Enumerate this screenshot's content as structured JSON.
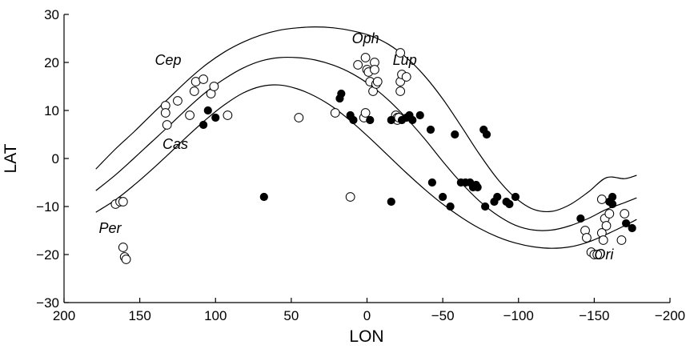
{
  "chart_data": {
    "type": "scatter",
    "xlabel": "LON",
    "ylabel": "LAT",
    "xlim": [
      200,
      -200
    ],
    "ylim": [
      -30,
      30
    ],
    "xticks": [
      200,
      150,
      100,
      50,
      0,
      -50,
      -100,
      -150,
      -200
    ],
    "yticks": [
      30,
      20,
      10,
      0,
      -10,
      -20,
      -30
    ],
    "xtick_labels": [
      "200",
      "150",
      "100",
      "50",
      "0",
      "−50",
      "−100",
      "−150",
      "−200"
    ],
    "ytick_labels": [
      "30",
      "20",
      "10",
      "0",
      "−10",
      "−20",
      "−30"
    ],
    "grid": false,
    "annotations": [
      {
        "text": "Cep",
        "x": 140,
        "y": 19.5
      },
      {
        "text": "Oph",
        "x": 10,
        "y": 24
      },
      {
        "text": "Lup",
        "x": -17,
        "y": 19.5
      },
      {
        "text": "Cas",
        "x": 135,
        "y": 2
      },
      {
        "text": "Per",
        "x": 177,
        "y": -15.5
      },
      {
        "text": "Ori",
        "x": -150,
        "y": -21
      }
    ],
    "curves": [
      {
        "name": "upper",
        "x": [
          179,
          166,
          154,
          142,
          130,
          118,
          106,
          94,
          82,
          70,
          58,
          46,
          34,
          22,
          10,
          -2,
          -14,
          -26,
          -38,
          -50,
          -62,
          -74,
          -86,
          -98,
          -110,
          -122,
          -134,
          -146,
          -158,
          -170,
          -178
        ],
        "y": [
          -2.2,
          2.0,
          5.5,
          9.2,
          12.8,
          16.4,
          19.6,
          22.2,
          24.2,
          25.7,
          26.7,
          27.2,
          27.4,
          27.2,
          26.6,
          25.6,
          23.8,
          21.0,
          17.2,
          12.4,
          6.8,
          1.0,
          -4.2,
          -8.2,
          -10.6,
          -11.0,
          -9.6,
          -7.0,
          -4.0,
          -4.2,
          -3.5
        ]
      },
      {
        "name": "middle",
        "x": [
          179,
          166,
          154,
          142,
          130,
          118,
          106,
          94,
          82,
          70,
          58,
          46,
          34,
          22,
          10,
          -2,
          -14,
          -26,
          -38,
          -50,
          -62,
          -74,
          -86,
          -98,
          -110,
          -122,
          -134,
          -146,
          -158,
          -170,
          -178
        ],
        "y": [
          -6.7,
          -3.4,
          0.0,
          3.5,
          7.0,
          10.6,
          13.9,
          16.6,
          18.8,
          20.3,
          21.0,
          21.0,
          20.5,
          19.4,
          17.7,
          15.3,
          12.2,
          8.4,
          4.1,
          -0.6,
          -5.0,
          -8.8,
          -11.8,
          -13.9,
          -14.9,
          -14.9,
          -14.0,
          -12.5,
          -10.6,
          -9.2,
          -8.2
        ]
      },
      {
        "name": "lower",
        "x": [
          179,
          166,
          154,
          142,
          130,
          118,
          106,
          94,
          82,
          70,
          58,
          46,
          34,
          22,
          10,
          -2,
          -14,
          -26,
          -38,
          -50,
          -62,
          -74,
          -86,
          -98,
          -110,
          -122,
          -134,
          -146,
          -158,
          -170,
          -178
        ],
        "y": [
          -11.2,
          -8.6,
          -5.6,
          -2.3,
          1.2,
          4.8,
          8.2,
          11.2,
          13.6,
          15.0,
          15.3,
          14.5,
          12.9,
          10.6,
          7.6,
          4.2,
          0.6,
          -3.0,
          -6.4,
          -9.5,
          -12.2,
          -14.5,
          -16.3,
          -17.6,
          -18.4,
          -18.7,
          -18.4,
          -17.4,
          -15.8,
          -14.0,
          -12.7
        ]
      }
    ],
    "series": [
      {
        "name": "open",
        "marker": "open-circle",
        "points": [
          [
            166,
            -9.5
          ],
          [
            163,
            -9.0
          ],
          [
            161,
            -9.0
          ],
          [
            161,
            -18.5
          ],
          [
            160,
            -20.5
          ],
          [
            159,
            -21.0
          ],
          [
            133,
            11.0
          ],
          [
            133,
            9.5
          ],
          [
            132,
            7.0
          ],
          [
            125,
            12.0
          ],
          [
            117,
            9.0
          ],
          [
            114,
            14.0
          ],
          [
            113,
            16.0
          ],
          [
            108,
            16.5
          ],
          [
            103,
            13.5
          ],
          [
            101,
            15.0
          ],
          [
            92,
            9.0
          ],
          [
            45,
            8.5
          ],
          [
            21,
            9.5
          ],
          [
            11,
            -8.0
          ],
          [
            6,
            19.5
          ],
          [
            2,
            8.5
          ],
          [
            1,
            9.5
          ],
          [
            1,
            21.0
          ],
          [
            0,
            18.5
          ],
          [
            -1,
            18.0
          ],
          [
            -2,
            16.0
          ],
          [
            -4,
            14.0
          ],
          [
            -5,
            20.0
          ],
          [
            -5,
            18.5
          ],
          [
            -6,
            15.5
          ],
          [
            -7,
            16.0
          ],
          [
            -19,
            9.0
          ],
          [
            -20,
            8.5
          ],
          [
            -20,
            8.0
          ],
          [
            -21,
            8.5
          ],
          [
            -22,
            22.0
          ],
          [
            -22,
            16.0
          ],
          [
            -22,
            14.0
          ],
          [
            -23,
            17.5
          ],
          [
            -26,
            17.0
          ],
          [
            -144,
            -15.0
          ],
          [
            -145,
            -16.5
          ],
          [
            -148,
            -19.5
          ],
          [
            -150,
            -20.0
          ],
          [
            -152,
            -20.0
          ],
          [
            -155,
            -8.5
          ],
          [
            -155,
            -15.5
          ],
          [
            -156,
            -17.0
          ],
          [
            -157,
            -12.5
          ],
          [
            -158,
            -14.0
          ],
          [
            -160,
            -11.5
          ],
          [
            -168,
            -17.0
          ],
          [
            -170,
            -11.5
          ]
        ]
      },
      {
        "name": "filled",
        "marker": "filled-circle",
        "points": [
          [
            108,
            7.0
          ],
          [
            105,
            10.0
          ],
          [
            100,
            8.5
          ],
          [
            68,
            -8.0
          ],
          [
            18,
            12.5
          ],
          [
            17,
            13.5
          ],
          [
            11,
            9.0
          ],
          [
            9,
            8.0
          ],
          [
            -2,
            8.0
          ],
          [
            -16,
            -9.0
          ],
          [
            -16,
            8.0
          ],
          [
            -23,
            8.0
          ],
          [
            -26,
            8.5
          ],
          [
            -28,
            9.0
          ],
          [
            -30,
            8.0
          ],
          [
            -35,
            9.0
          ],
          [
            -42,
            6.0
          ],
          [
            -43,
            -5.0
          ],
          [
            -50,
            -8.0
          ],
          [
            -55,
            -10.0
          ],
          [
            -58,
            5.0
          ],
          [
            -62,
            -5.0
          ],
          [
            -65,
            -5.0
          ],
          [
            -68,
            -5.0
          ],
          [
            -70,
            -6.0
          ],
          [
            -72,
            -5.5
          ],
          [
            -73,
            -6.0
          ],
          [
            -77,
            6.0
          ],
          [
            -78,
            -10.0
          ],
          [
            -79,
            5.0
          ],
          [
            -84,
            -9.0
          ],
          [
            -86,
            -8.0
          ],
          [
            -92,
            -9.0
          ],
          [
            -94,
            -9.5
          ],
          [
            -98,
            -8.0
          ],
          [
            -141,
            -12.5
          ],
          [
            -160,
            -9.0
          ],
          [
            -162,
            -8.0
          ],
          [
            -162,
            -9.5
          ],
          [
            -171,
            -13.5
          ],
          [
            -175,
            -14.5
          ]
        ]
      }
    ]
  }
}
